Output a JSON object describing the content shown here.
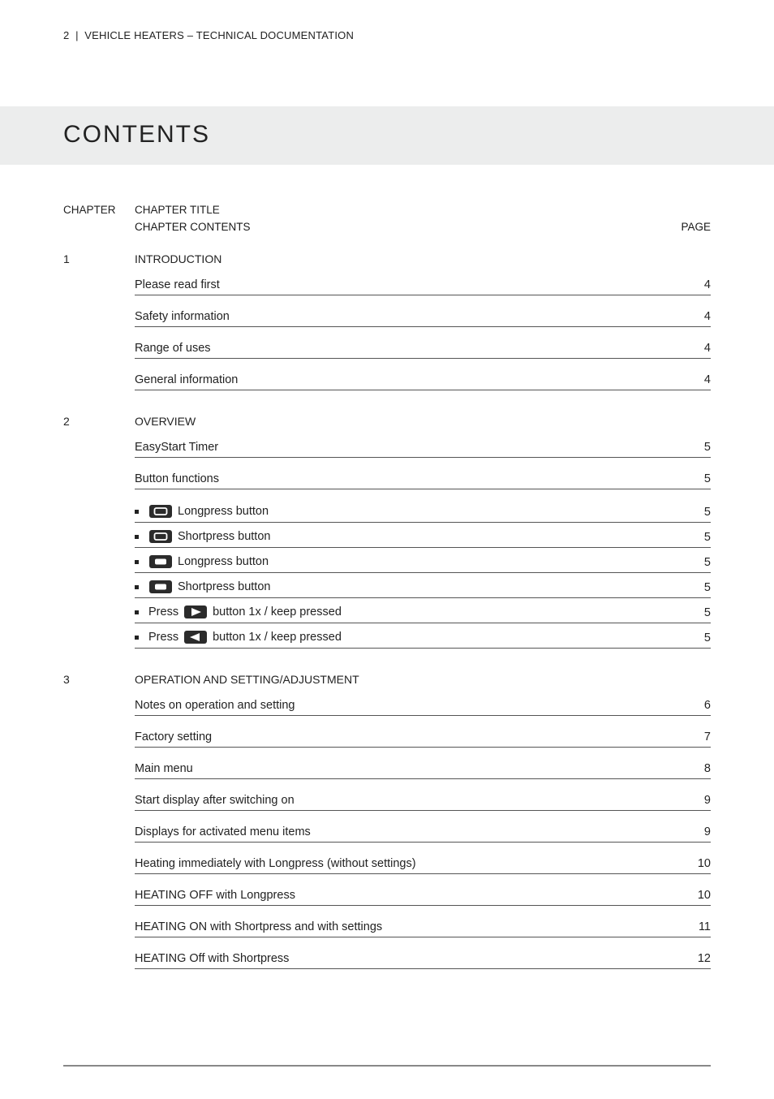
{
  "header": {
    "page_num": "2",
    "separator": "|",
    "doc_title": "VEHICLE HEATERS – TECHNICAL DOCUMENTATION"
  },
  "title": "CONTENTS",
  "head": {
    "chapter": "CHAPTER",
    "chapter_title": "CHAPTER TITLE",
    "chapter_contents": "CHAPTER CONTENTS",
    "page": "PAGE"
  },
  "colors": {
    "text": "#1a1a1a",
    "band_bg": "#eceded",
    "rule": "#555555",
    "footer_rule": "#888888",
    "icon_dark": "#2b2b2b",
    "icon_border": "#2b2b2b",
    "icon_inner_white": "#ffffff"
  },
  "chapters": [
    {
      "num": "1",
      "title": "INTRODUCTION",
      "entries": [
        {
          "label": "Please read first",
          "page": "4"
        },
        {
          "label": "Safety information",
          "page": "4"
        },
        {
          "label": "Range of uses",
          "page": "4"
        },
        {
          "label": "General information",
          "page": "4"
        }
      ]
    },
    {
      "num": "2",
      "title": "OVERVIEW",
      "entries": [
        {
          "label": "EasyStart Timer",
          "page": "5"
        },
        {
          "label": "Button functions",
          "page": "5"
        },
        {
          "bullet": true,
          "icon": "rrect-outline-inner",
          "label": "Longpress button",
          "page": "5",
          "tight": true
        },
        {
          "bullet": true,
          "icon": "rrect-outline-inner",
          "label": "Shortpress button",
          "page": "5",
          "tight": true
        },
        {
          "bullet": true,
          "icon": "rrect-solid-inner",
          "label": "Longpress button",
          "page": "5",
          "tight": true
        },
        {
          "bullet": true,
          "icon": "rrect-solid-inner",
          "label": "Shortpress button",
          "page": "5",
          "tight": true
        },
        {
          "bullet": true,
          "prefix": "Press",
          "icon": "arrow-right",
          "label": "button 1x / keep pressed",
          "page": "5",
          "tight": true
        },
        {
          "bullet": true,
          "prefix": "Press",
          "icon": "arrow-left",
          "label": "button 1x / keep pressed",
          "page": "5",
          "tight": true
        }
      ]
    },
    {
      "num": "3",
      "title": "OPERATION AND SETTING/ADJUSTMENT",
      "entries": [
        {
          "label": "Notes on operation and setting",
          "page": "6"
        },
        {
          "label": "Factory setting",
          "page": "7"
        },
        {
          "label": "Main menu",
          "page": "8"
        },
        {
          "label": "Start display after switching on",
          "page": "9"
        },
        {
          "label": "Displays for activated menu items",
          "page": "9"
        },
        {
          "label": "Heating immediately with Longpress (without settings)",
          "page": "10"
        },
        {
          "label": "HEATING OFF with Longpress",
          "page": "10"
        },
        {
          "label": "HEATING ON with Shortpress and with settings",
          "page": "11"
        },
        {
          "label": "HEATING Off with Shortpress",
          "page": "12"
        }
      ]
    }
  ]
}
